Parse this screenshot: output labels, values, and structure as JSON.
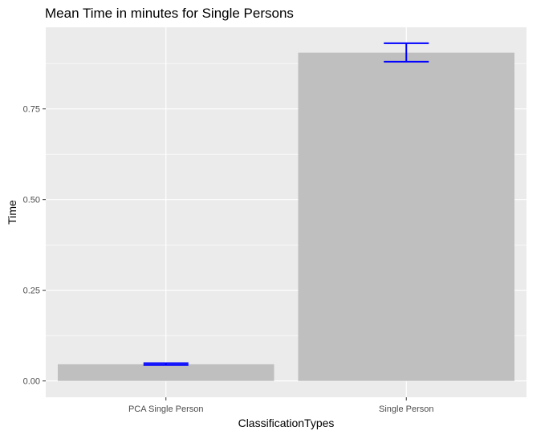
{
  "chart_data": {
    "type": "bar",
    "title": "Mean Time in minutes for Single Persons",
    "xlabel": "ClassificationTypes",
    "ylabel": "Time",
    "categories": [
      "PCA Single Person",
      "Single Person"
    ],
    "values": [
      0.046,
      0.905
    ],
    "error_bars": [
      {
        "lower": 0.044,
        "upper": 0.049
      },
      {
        "lower": 0.88,
        "upper": 0.931
      }
    ],
    "ylim": [
      -0.045,
      0.975
    ],
    "yticks": [
      0.0,
      0.25,
      0.5,
      0.75
    ],
    "ytick_labels": [
      "0.00",
      "0.25",
      "0.50",
      "0.75"
    ],
    "grid": true,
    "legend": "none",
    "colors": {
      "panel_background": "#ebebeb",
      "grid": "#ffffff",
      "bar_fill": "#bfbfbf",
      "error_bar": "#0000ff"
    }
  }
}
